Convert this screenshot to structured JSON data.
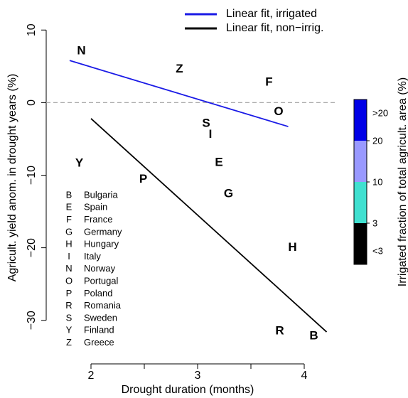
{
  "chart_data": {
    "type": "scatter",
    "xlabel": "Drought duration (months)",
    "ylabel": "Agricult. yield anom. in drought years (%)",
    "xlim": [
      1.58,
      4.3
    ],
    "ylim": [
      -36,
      11.2
    ],
    "xticks": [
      2,
      3,
      4
    ],
    "xminor_ticks": [
      2.5,
      3.5
    ],
    "yticks": [
      10,
      0,
      {
        "value": -10,
        "label": "−10"
      },
      {
        "value": -20,
        "label": "−20"
      },
      {
        "value": -30,
        "label": "−30"
      }
    ],
    "reference_line_y": 0,
    "points": [
      {
        "label": "N",
        "x": 1.91,
        "y": 7.1,
        "color": "#40e0d0"
      },
      {
        "label": "Z",
        "x": 2.83,
        "y": 4.6,
        "color": "#1a1ae6"
      },
      {
        "label": "F",
        "x": 3.67,
        "y": 2.8,
        "color": "#40e0d0"
      },
      {
        "label": "O",
        "x": 3.76,
        "y": -1.3,
        "color": "#9999ff"
      },
      {
        "label": "S",
        "x": 3.08,
        "y": -2.9,
        "color": "#000000"
      },
      {
        "label": "I",
        "x": 3.12,
        "y": -4.4,
        "color": "#1a1ae6"
      },
      {
        "label": "E",
        "x": 3.2,
        "y": -8.3,
        "color": "#9999ff"
      },
      {
        "label": "Y",
        "x": 1.89,
        "y": -8.4,
        "color": "#000000"
      },
      {
        "label": "P",
        "x": 2.49,
        "y": -10.6,
        "color": "#000000"
      },
      {
        "label": "G",
        "x": 3.29,
        "y": -12.6,
        "color": "#000000"
      },
      {
        "label": "H",
        "x": 3.89,
        "y": -20.0,
        "color": "#000000"
      },
      {
        "label": "R",
        "x": 3.77,
        "y": -31.5,
        "color": "#000000"
      },
      {
        "label": "B",
        "x": 4.09,
        "y": -32.2,
        "color": "#000000"
      }
    ],
    "fits": [
      {
        "name": "Linear fit, irrigated",
        "color": "#1a1ae6",
        "x": [
          1.8,
          3.85
        ],
        "y": [
          5.8,
          -3.3
        ]
      },
      {
        "name": "Linear fit, non−irrig.",
        "color": "#000000",
        "x": [
          2.0,
          4.21
        ],
        "y": [
          -2.2,
          -31.6
        ]
      }
    ],
    "key": [
      {
        "letter": "B",
        "country": "Bulgaria"
      },
      {
        "letter": "E",
        "country": "Spain"
      },
      {
        "letter": "F",
        "country": "France"
      },
      {
        "letter": "G",
        "country": "Germany"
      },
      {
        "letter": "H",
        "country": "Hungary"
      },
      {
        "letter": "I",
        "country": "Italy"
      },
      {
        "letter": "N",
        "country": "Norway"
      },
      {
        "letter": "O",
        "country": "Portugal"
      },
      {
        "letter": "P",
        "country": "Poland"
      },
      {
        "letter": "R",
        "country": "Romania"
      },
      {
        "letter": "S",
        "country": "Sweden"
      },
      {
        "letter": "Y",
        "country": "Finland"
      },
      {
        "letter": "Z",
        "country": "Greece"
      }
    ],
    "colorbar": {
      "label": "Irrigated fraction of total agricult. area (%)",
      "colors": [
        "#0000e6",
        "#9999ff",
        "#40e0d0",
        "#000000"
      ],
      "labels": [
        ">20",
        "20",
        "10",
        "3",
        "<3"
      ]
    }
  }
}
